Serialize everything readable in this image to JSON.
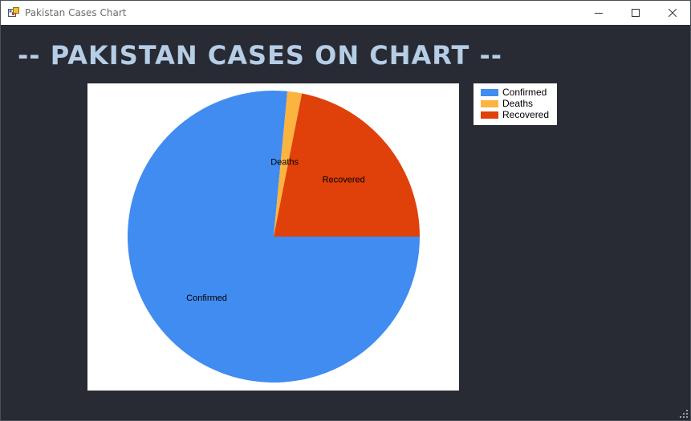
{
  "window": {
    "title": "Pakistan Cases Chart",
    "icon": "app-window-icon",
    "buttons": [
      "minimize-icon",
      "maximize-icon",
      "close-icon"
    ]
  },
  "heading": "-- PAKISTAN CASES ON CHART --",
  "colors": {
    "background": "#282b33",
    "heading": "#b6cde6",
    "confirmed": "#418cf0",
    "deaths": "#fcb441",
    "recovered": "#e0400a"
  },
  "legend": {
    "items": [
      {
        "label": "Confirmed",
        "color": "#418cf0"
      },
      {
        "label": "Deaths",
        "color": "#fcb441"
      },
      {
        "label": "Recovered",
        "color": "#e0400a"
      }
    ]
  },
  "chart_data": {
    "type": "pie",
    "title": "",
    "start_angle_deg": 90,
    "direction": "clockwise",
    "legend_position": "right",
    "slices": [
      {
        "label": "Confirmed",
        "value": 76.5,
        "color": "#418cf0"
      },
      {
        "label": "Deaths",
        "value": 1.6,
        "color": "#fcb441"
      },
      {
        "label": "Recovered",
        "value": 21.9,
        "color": "#e0400a"
      }
    ]
  }
}
